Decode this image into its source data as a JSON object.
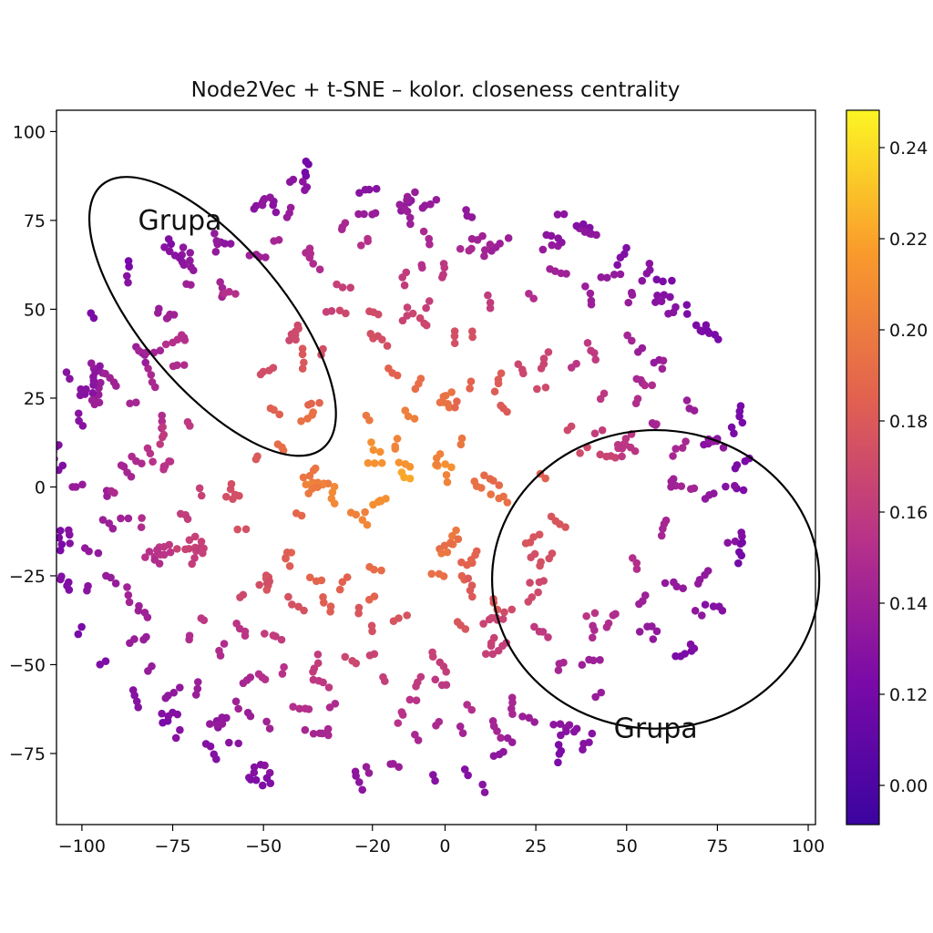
{
  "chart_data": {
    "type": "scatter",
    "title": "Node2Vec + t-SNE – kolor. closeness centrality",
    "xlabel": "",
    "ylabel": "",
    "xlim": [
      -107,
      102
    ],
    "ylim": [
      -95,
      106
    ],
    "x_ticks": [
      -100,
      -75,
      -50,
      -20,
      0,
      25,
      50,
      75,
      100
    ],
    "x_tick_labels": [
      "−100",
      "−75",
      "−50",
      "−20",
      "0",
      "25",
      "50",
      "75",
      "100"
    ],
    "y_ticks": [
      100,
      75,
      50,
      25,
      0,
      -25,
      -50,
      -75
    ],
    "y_tick_labels": [
      "100",
      "75",
      "50",
      "25",
      "0",
      "−25",
      "−50",
      "−75"
    ],
    "grid": false,
    "colorbar": {
      "label": "",
      "colormap": "plasma",
      "min_color": "#3b04a0",
      "max_color": "#fcf524",
      "ticks": [
        0.24,
        0.22,
        0.2,
        0.18,
        0.16,
        0.14,
        0.12,
        0.0
      ],
      "tick_labels": [
        "0.24",
        "0.22",
        "0.20",
        "0.18",
        "0.16",
        "0.14",
        "0.12",
        "0.00"
      ]
    },
    "annotations": [
      {
        "text": "Grupa",
        "x": -73,
        "y": 75
      },
      {
        "text": "Grupa",
        "x": 58,
        "y": -68
      }
    ],
    "group_ellipses": [
      {
        "cx": -64,
        "cy": 48,
        "rx": 41,
        "ry": 20,
        "rotation_deg": -40
      },
      {
        "cx": 58,
        "cy": -26,
        "rx": 53,
        "ry": 35,
        "rotation_deg": 0
      }
    ],
    "points_note_color_by": "closeness_centrality"
  }
}
